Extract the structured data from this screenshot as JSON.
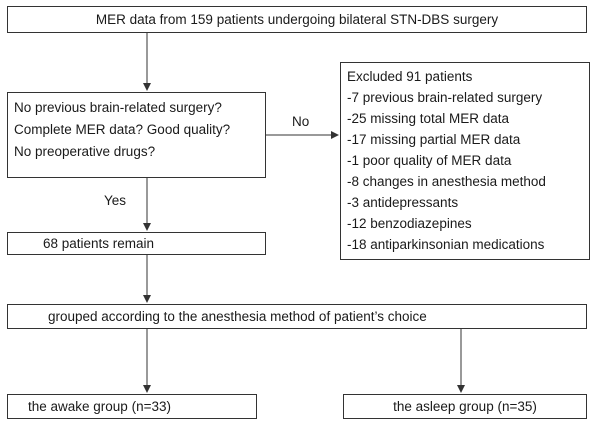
{
  "boxes": {
    "top": "MER data from 159 patients undergoing bilateral STN-DBS surgery",
    "criteria": [
      "No previous brain-related surgery?",
      "Complete MER data? Good quality?",
      "No preoperative drugs?"
    ],
    "excluded": [
      "Excluded 91 patients",
      "-7 previous brain-related surgery",
      "-25 missing total MER data",
      "-17 missing partial MER data",
      "-1 poor quality of MER data",
      "-8 changes in anesthesia method",
      "-3 antidepressants",
      "-12 benzodiazepines",
      "-18 antiparkinsonian medications"
    ],
    "remain": "68 patients remain",
    "grouped": "grouped according to the anesthesia method of patient’s choice",
    "awake": "the awake group (n=33)",
    "asleep": "the asleep group (n=35)"
  },
  "labels": {
    "no": "No",
    "yes": "Yes"
  }
}
